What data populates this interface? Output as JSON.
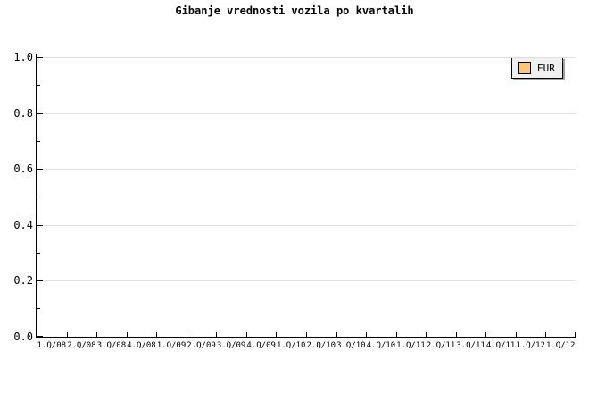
{
  "title": "Gibanje vrednosti vozila po kvartalih",
  "legend": {
    "label": "EUR",
    "swatch_color": "#fac878",
    "position": "top-right"
  },
  "colors": {
    "background": "#ffffff",
    "axis": "#000000",
    "grid": "#e0e0e0",
    "text": "#000000",
    "legend_bg": "#f0f0f0",
    "legend_shadow": "#a0a0a0",
    "series_eur": "#fac878"
  },
  "y_axis": {
    "tick_labels": [
      "1.0",
      "0.8",
      "0.6",
      "0.4",
      "0.2",
      "0.0"
    ],
    "minor_tick_interval": 0.1
  },
  "x_axis": {
    "labels": [
      "1.Q/08",
      "2.Q/08",
      "3.Q/08",
      "4.Q/08",
      "1.Q/09",
      "2.Q/09",
      "3.Q/09",
      "4.Q/09",
      "1.Q/10",
      "2.Q/10",
      "3.Q/10",
      "4.Q/10",
      "1.Q/11",
      "2.Q/11",
      "3.Q/11",
      "4.Q/11",
      "1.Q/12",
      "1.Q/12"
    ]
  },
  "chart_data": {
    "type": "line",
    "title": "Gibanje vrednosti vozila po kvartalih",
    "categories": [
      "1.Q/08",
      "2.Q/08",
      "3.Q/08",
      "4.Q/08",
      "1.Q/09",
      "2.Q/09",
      "3.Q/09",
      "4.Q/09",
      "1.Q/10",
      "2.Q/10",
      "3.Q/10",
      "4.Q/10",
      "1.Q/11",
      "2.Q/11",
      "3.Q/11",
      "4.Q/11",
      "1.Q/12",
      "1.Q/12"
    ],
    "series": [
      {
        "name": "EUR",
        "color": "#fac878",
        "values": []
      }
    ],
    "xlabel": "",
    "ylabel": "",
    "ylim": [
      0.0,
      1.0
    ],
    "y_major_tick_interval": 0.2,
    "y_minor_tick_interval": 0.1,
    "grid": true,
    "gridlines": "horizontal-major-only",
    "legend_position": "top-right",
    "plot_area_empty": true
  }
}
